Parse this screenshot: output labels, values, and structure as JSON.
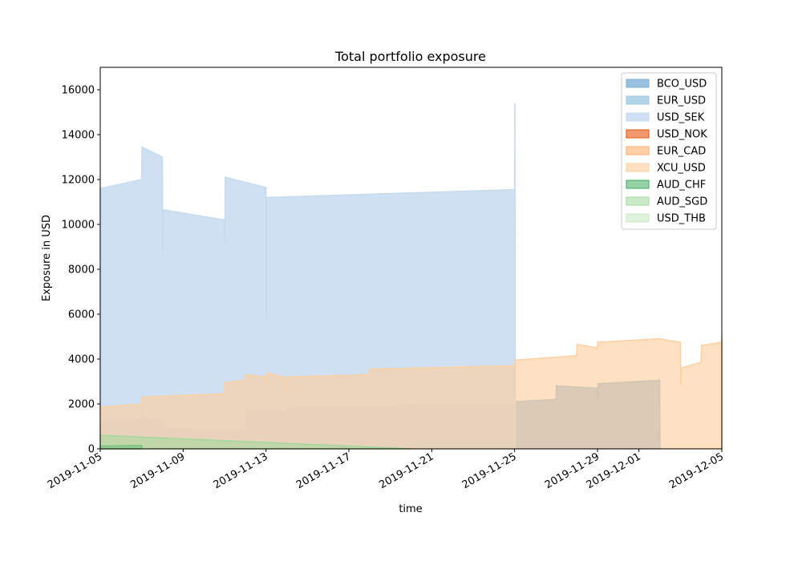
{
  "chart_data": {
    "type": "area",
    "title": "Total portfolio exposure",
    "xlabel": "time",
    "ylabel": "Exposure in USD",
    "xlim": [
      "2019-11-05",
      "2019-12-05"
    ],
    "ylim": [
      0,
      17000
    ],
    "xticks": [
      "2019-11-05",
      "2019-11-09",
      "2019-11-13",
      "2019-11-17",
      "2019-11-21",
      "2019-11-25",
      "2019-11-29",
      "2019-12-01",
      "2019-12-05"
    ],
    "yticks": [
      0,
      2000,
      4000,
      6000,
      8000,
      10000,
      12000,
      14000,
      16000
    ],
    "grid": false,
    "legend_position": "upper right",
    "series": [
      {
        "name": "BCO_USD",
        "color": "#7fb2d5",
        "alpha": 0.8,
        "points": [
          [
            "2019-11-05",
            1200
          ],
          [
            "2019-11-07",
            1300
          ],
          [
            "2019-11-07",
            1700
          ],
          [
            "2019-11-07",
            1350
          ],
          [
            "2019-11-08",
            1250
          ],
          [
            "2019-11-08",
            1350
          ],
          [
            "2019-11-08",
            900
          ],
          [
            "2019-11-12",
            800
          ],
          [
            "2019-11-12",
            350
          ],
          [
            "2019-11-12",
            1750
          ],
          [
            "2019-11-13",
            1650
          ],
          [
            "2019-11-14",
            1650
          ],
          [
            "2019-11-14",
            1450
          ],
          [
            "2019-11-14",
            1850
          ],
          [
            "2019-11-25",
            2000
          ],
          [
            "2019-11-25",
            2100
          ],
          [
            "2019-11-27",
            2200
          ],
          [
            "2019-11-27",
            2800
          ],
          [
            "2019-11-29",
            2700
          ],
          [
            "2019-11-29",
            2200
          ],
          [
            "2019-11-29",
            2900
          ],
          [
            "2019-12-02",
            3050
          ],
          [
            "2019-12-02",
            0
          ]
        ]
      },
      {
        "name": "EUR_USD",
        "color": "#9ecae1",
        "alpha": 0.8,
        "points": []
      },
      {
        "name": "USD_SEK",
        "color": "#c6dbef",
        "alpha": 0.85,
        "points": [
          [
            "2019-11-05",
            11600
          ],
          [
            "2019-11-07",
            12000
          ],
          [
            "2019-11-07",
            13450
          ],
          [
            "2019-11-08",
            13000
          ],
          [
            "2019-11-08",
            8700
          ],
          [
            "2019-11-08",
            10650
          ],
          [
            "2019-11-11",
            10200
          ],
          [
            "2019-11-11",
            9200
          ],
          [
            "2019-11-11",
            12100
          ],
          [
            "2019-11-13",
            11650
          ],
          [
            "2019-11-13",
            5800
          ],
          [
            "2019-11-13",
            11200
          ],
          [
            "2019-11-25",
            11550
          ],
          [
            "2019-11-25",
            15400
          ],
          [
            "2019-11-25",
            0
          ]
        ]
      },
      {
        "name": "USD_NOK",
        "color": "#e6550d",
        "alpha": 0.6,
        "points": []
      },
      {
        "name": "EUR_CAD",
        "color": "#fdae6b",
        "alpha": 0.6,
        "points": []
      },
      {
        "name": "XCU_USD",
        "color": "#fdd0a2",
        "alpha": 0.65,
        "points": [
          [
            "2019-11-05",
            1850
          ],
          [
            "2019-11-07",
            2000
          ],
          [
            "2019-11-07",
            2300
          ],
          [
            "2019-11-11",
            2450
          ],
          [
            "2019-11-11",
            2950
          ],
          [
            "2019-11-12",
            3050
          ],
          [
            "2019-11-12",
            3300
          ],
          [
            "2019-11-13",
            3200
          ],
          [
            "2019-11-13",
            2800
          ],
          [
            "2019-11-13",
            3400
          ],
          [
            "2019-11-14",
            3150
          ],
          [
            "2019-11-14",
            2600
          ],
          [
            "2019-11-14",
            3200
          ],
          [
            "2019-11-18",
            3300
          ],
          [
            "2019-11-18",
            3550
          ],
          [
            "2019-11-25",
            3700
          ],
          [
            "2019-11-25",
            3950
          ],
          [
            "2019-11-28",
            4150
          ],
          [
            "2019-11-28",
            4650
          ],
          [
            "2019-11-29",
            4500
          ],
          [
            "2019-11-29",
            4750
          ],
          [
            "2019-12-02",
            4900
          ],
          [
            "2019-12-03",
            4750
          ],
          [
            "2019-12-03",
            2850
          ],
          [
            "2019-12-03",
            3600
          ],
          [
            "2019-12-04",
            3850
          ],
          [
            "2019-12-04",
            4600
          ],
          [
            "2019-12-05",
            4750
          ],
          [
            "2019-12-05",
            5100
          ]
        ]
      },
      {
        "name": "AUD_CHF",
        "color": "#41ab5d",
        "alpha": 0.55,
        "points": [
          [
            "2019-11-05",
            120
          ],
          [
            "2019-11-07",
            150
          ],
          [
            "2019-11-07",
            0
          ]
        ]
      },
      {
        "name": "AUD_SGD",
        "color": "#a1d99b",
        "alpha": 0.55,
        "points": [
          [
            "2019-11-05",
            600
          ],
          [
            "2019-11-20",
            0
          ]
        ]
      },
      {
        "name": "USD_THB",
        "color": "#c7e9c0",
        "alpha": 0.55,
        "points": []
      }
    ]
  }
}
